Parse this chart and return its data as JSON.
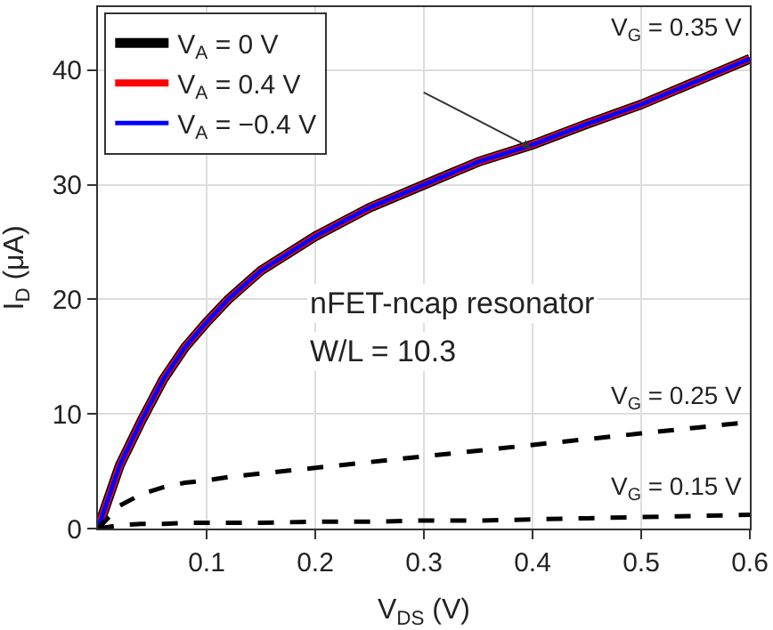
{
  "chart_data": {
    "type": "line",
    "xlabel": "V$_{DS}$ (V)",
    "ylabel": "I$_{D}$ (μA)",
    "x": [
      0,
      0.02,
      0.04,
      0.06,
      0.08,
      0.1,
      0.12,
      0.15,
      0.2,
      0.25,
      0.3,
      0.35,
      0.4,
      0.45,
      0.5,
      0.55,
      0.6
    ],
    "series": [
      {
        "name": "V$_{A}$ = 0 V",
        "color": "#000000",
        "values": [
          0,
          5.5,
          9.4,
          13,
          15.8,
          18,
          20,
          22.5,
          25.5,
          28,
          30,
          32,
          33.5,
          35.3,
          37,
          39,
          41
        ]
      },
      {
        "name": "V$_{A}$ = 0.4 V",
        "color": "#ff0000",
        "values": [
          0,
          5.5,
          9.4,
          13,
          15.8,
          18,
          20,
          22.5,
          25.5,
          28,
          30,
          32,
          33.5,
          35.3,
          37,
          39,
          41
        ]
      },
      {
        "name": "V$_{A}$ = −0.4 V",
        "color": "#0000ff",
        "values": [
          0,
          5.5,
          9.4,
          13,
          15.8,
          18,
          20,
          22.5,
          25.5,
          28,
          30,
          32,
          33.5,
          35.3,
          37,
          39,
          41
        ]
      },
      {
        "color": "#000000",
        "line_style": "dashed",
        "values": [
          0,
          2,
          3,
          3.6,
          4,
          4.2,
          4.5,
          4.8,
          5.3,
          5.8,
          6.3,
          6.8,
          7.3,
          7.8,
          8.3,
          8.8,
          9.3
        ]
      },
      {
        "color": "#000000",
        "line_style": "dashed",
        "values": [
          0,
          0.3,
          0.4,
          0.4,
          0.5,
          0.5,
          0.5,
          0.5,
          0.6,
          0.6,
          0.7,
          0.7,
          0.8,
          0.9,
          1.0,
          1.1,
          1.2
        ]
      }
    ],
    "xlim": [
      0,
      0.6
    ],
    "xticks": [
      0.1,
      0.2,
      0.3,
      0.4,
      0.5,
      0.6
    ],
    "ylim": [
      0,
      45.5
    ],
    "yticks": [
      0,
      10,
      20,
      30,
      40
    ],
    "grid": true,
    "legend": "top left",
    "marker": "none",
    "line_style": "solid",
    "annotations": [
      "V$_{G}$ = 0.35 V",
      "V$_{G}$ = 0.25 V",
      "V$_{G}$ = 0.15 V",
      "nFET-ncap resonator",
      "W/L = 10.3"
    ]
  }
}
